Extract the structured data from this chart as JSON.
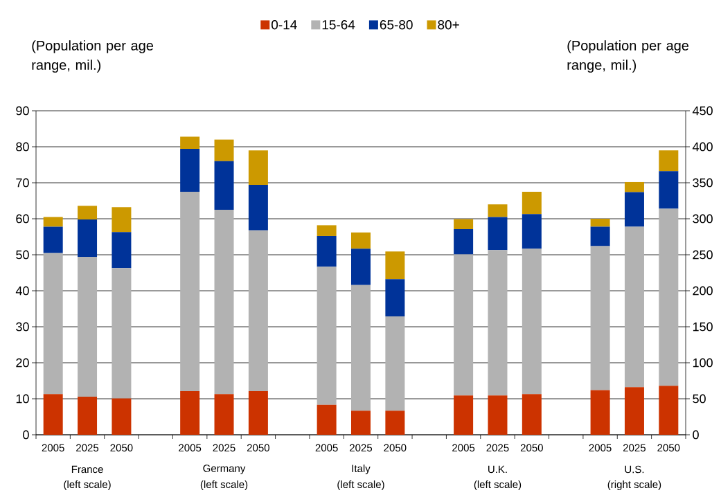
{
  "chart_data": {
    "type": "bar",
    "stacked": true,
    "categories": [
      "2005",
      "2025",
      "2050",
      "2005",
      "2025",
      "2050",
      "2005",
      "2025",
      "2050",
      "2005",
      "2025",
      "2050",
      "2005",
      "2025",
      "2050"
    ],
    "series": [
      {
        "name": "0-14",
        "color": "#cc3300",
        "values": [
          11.3,
          10.6,
          10.1,
          12.1,
          11.3,
          12.1,
          8.3,
          6.7,
          6.7,
          10.9,
          10.9,
          11.3,
          null,
          null,
          null
        ]
      },
      {
        "name": "15-64",
        "color": "#b2b2b2",
        "values": [
          39.2,
          38.8,
          36.2,
          55.4,
          51.2,
          44.7,
          38.4,
          34.9,
          26.2,
          39.2,
          40.4,
          40.4,
          null,
          null,
          null
        ]
      },
      {
        "name": "65-80",
        "color": "#003399",
        "values": [
          7.3,
          10.4,
          10.0,
          11.9,
          13.5,
          12.6,
          8.5,
          10.1,
          10.3,
          7.0,
          9.2,
          9.6,
          null,
          null,
          null
        ]
      },
      {
        "name": "80+",
        "color": "#cc9900",
        "values": [
          2.7,
          3.8,
          6.9,
          3.4,
          6.0,
          9.6,
          3.0,
          4.5,
          7.7,
          2.8,
          3.5,
          6.2,
          null,
          null,
          null
        ]
      },
      {
        "color": "#cc3300",
        "axis": "y2",
        "values": [
          null,
          null,
          null,
          null,
          null,
          null,
          null,
          null,
          null,
          null,
          null,
          null,
          62,
          66,
          68
        ]
      },
      {
        "color": "#b2b2b2",
        "axis": "y2",
        "values": [
          null,
          null,
          null,
          null,
          null,
          null,
          null,
          null,
          null,
          null,
          null,
          null,
          200,
          223,
          246
        ]
      },
      {
        "color": "#003399",
        "axis": "y2",
        "values": [
          null,
          null,
          null,
          null,
          null,
          null,
          null,
          null,
          null,
          null,
          null,
          null,
          27,
          48,
          52
        ]
      },
      {
        "color": "#cc9900",
        "axis": "y2",
        "values": [
          null,
          null,
          null,
          null,
          null,
          null,
          null,
          null,
          null,
          null,
          null,
          null,
          11,
          14,
          29
        ]
      }
    ],
    "ylim": [
      0,
      90
    ],
    "yticks": [
      0,
      10,
      20,
      30,
      40,
      50,
      60,
      70,
      80,
      90
    ],
    "y2lim": [
      0,
      450
    ],
    "y2ticks": [
      0,
      50,
      100,
      150,
      200,
      250,
      300,
      350,
      400,
      450
    ],
    "ylabel": "(Population per age range, mil.)",
    "y2label": "(Population per age range, mil.)",
    "annotations": [
      "France",
      "(left scale)",
      "Germany",
      "(left scale)",
      "Italy",
      "(left scale)",
      "U.K.",
      "(left scale)",
      "U.S.",
      "(right scale)"
    ],
    "grid": "y",
    "legend": "top"
  }
}
